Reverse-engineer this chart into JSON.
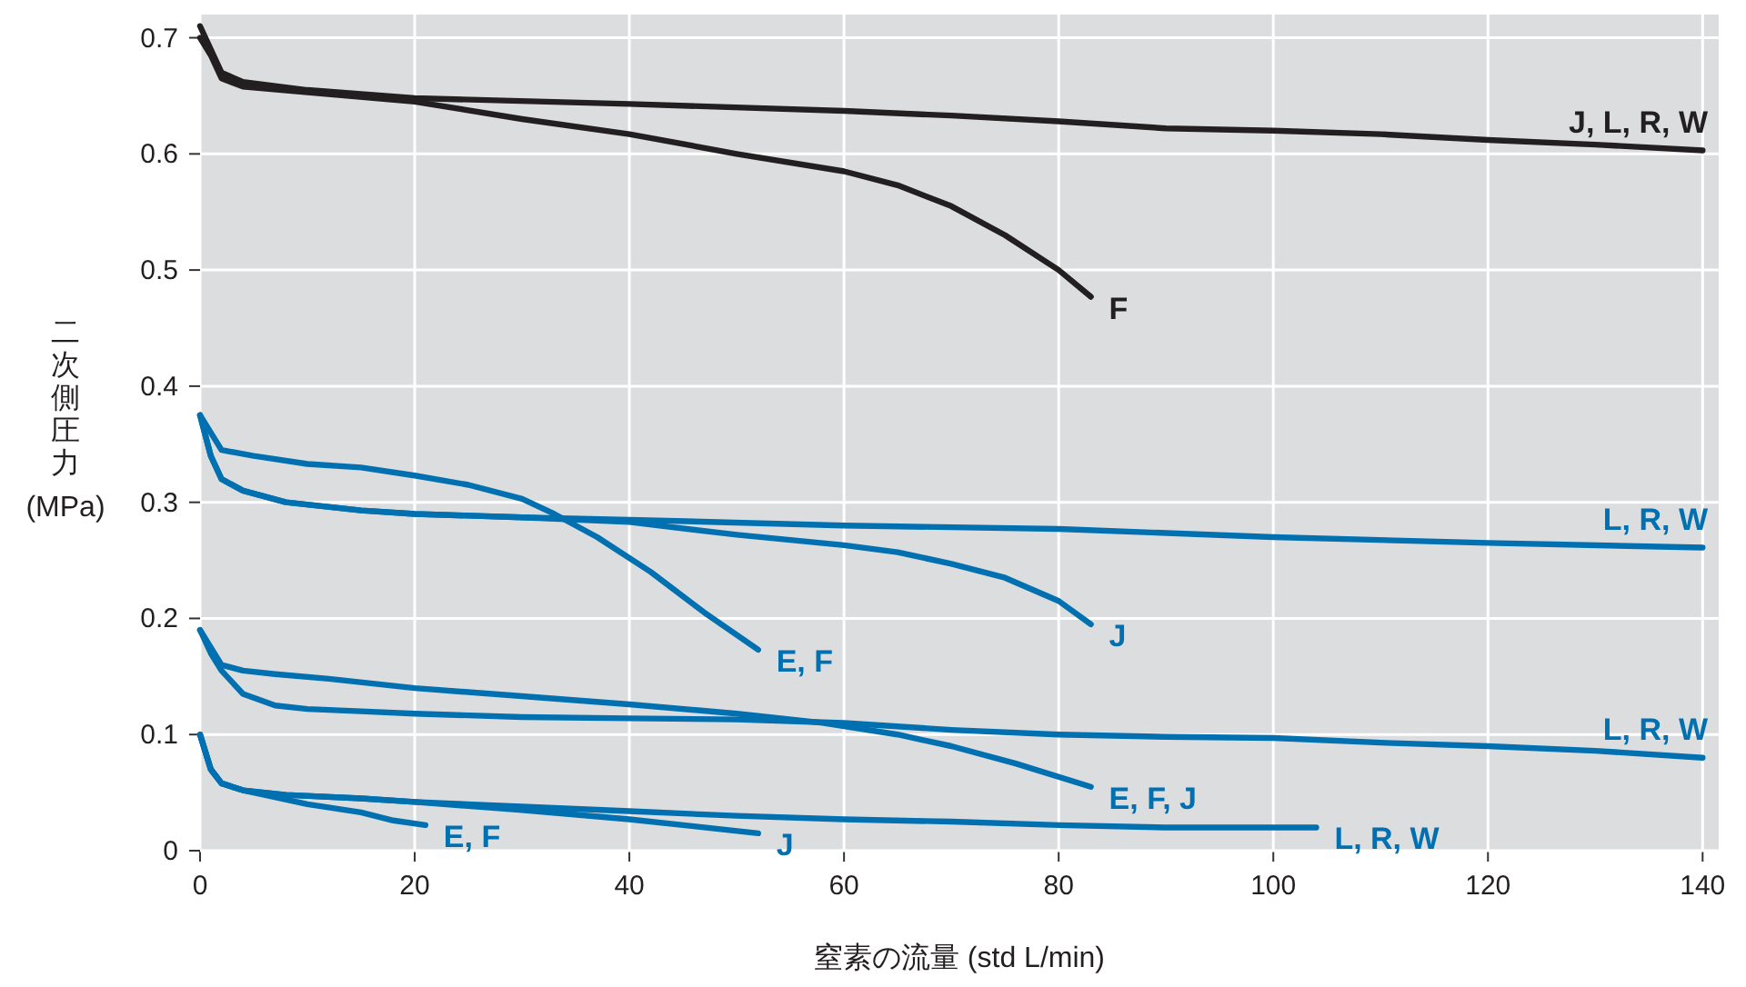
{
  "chart_data": {
    "type": "line",
    "xlabel": "窒素の流量 (std L/min)",
    "ylabel": "二次側圧力 (MPa)",
    "xlim": [
      0,
      141.5
    ],
    "ylim": [
      0,
      0.72
    ],
    "xticks": [
      0,
      20,
      40,
      60,
      80,
      100,
      120,
      140
    ],
    "yticks": [
      0,
      0.1,
      0.2,
      0.3,
      0.4,
      0.5,
      0.6,
      0.7
    ],
    "grid": true,
    "series": [
      {
        "name": "J, L, R, W",
        "color": "#231f20",
        "x": [
          0,
          1,
          2,
          4,
          10,
          20,
          40,
          60,
          70,
          80,
          90,
          100,
          110,
          120,
          130,
          140
        ],
        "values": [
          0.71,
          0.69,
          0.67,
          0.662,
          0.655,
          0.648,
          0.643,
          0.637,
          0.633,
          0.628,
          0.622,
          0.62,
          0.617,
          0.612,
          0.608,
          0.603
        ]
      },
      {
        "name": "F",
        "color": "#231f20",
        "x": [
          0,
          1,
          2,
          4,
          10,
          20,
          30,
          40,
          50,
          60,
          65,
          70,
          75,
          80,
          83
        ],
        "values": [
          0.7,
          0.685,
          0.665,
          0.658,
          0.653,
          0.645,
          0.63,
          0.617,
          0.6,
          0.585,
          0.573,
          0.555,
          0.53,
          0.5,
          0.477
        ]
      },
      {
        "name": "L, R, W",
        "color": "#0070b0",
        "x": [
          0,
          1,
          2,
          4,
          8,
          15,
          20,
          30,
          40,
          60,
          80,
          100,
          120,
          140
        ],
        "values": [
          0.375,
          0.34,
          0.32,
          0.31,
          0.3,
          0.293,
          0.29,
          0.287,
          0.285,
          0.28,
          0.277,
          0.27,
          0.265,
          0.261
        ]
      },
      {
        "name": "E, F",
        "color": "#0070b0",
        "x": [
          0,
          2,
          5,
          10,
          15,
          20,
          25,
          30,
          33,
          37,
          42,
          47,
          52
        ],
        "values": [
          0.375,
          0.345,
          0.34,
          0.333,
          0.33,
          0.323,
          0.315,
          0.303,
          0.29,
          0.27,
          0.24,
          0.205,
          0.173
        ]
      },
      {
        "name": "J",
        "color": "#0070b0",
        "x": [
          0,
          1,
          2,
          4,
          8,
          15,
          20,
          30,
          40,
          50,
          60,
          65,
          70,
          75,
          80,
          83
        ],
        "values": [
          0.375,
          0.34,
          0.32,
          0.31,
          0.3,
          0.293,
          0.29,
          0.287,
          0.283,
          0.272,
          0.263,
          0.257,
          0.247,
          0.235,
          0.215,
          0.195
        ]
      },
      {
        "name": "L, R, W",
        "color": "#0070b0",
        "x": [
          0,
          1,
          2,
          4,
          7,
          10,
          15,
          20,
          30,
          40,
          50,
          60,
          70,
          80,
          90,
          100,
          110,
          120,
          130,
          140
        ],
        "values": [
          0.19,
          0.17,
          0.155,
          0.135,
          0.125,
          0.122,
          0.12,
          0.118,
          0.115,
          0.114,
          0.113,
          0.11,
          0.104,
          0.1,
          0.098,
          0.097,
          0.093,
          0.09,
          0.086,
          0.08
        ]
      },
      {
        "name": "E, F, J",
        "color": "#0070b0",
        "x": [
          0,
          1,
          2,
          4,
          7,
          12,
          20,
          30,
          40,
          50,
          58,
          65,
          70,
          76,
          83
        ],
        "values": [
          0.19,
          0.175,
          0.16,
          0.155,
          0.152,
          0.148,
          0.14,
          0.133,
          0.126,
          0.118,
          0.11,
          0.1,
          0.09,
          0.075,
          0.055
        ]
      },
      {
        "name": "L, R, W",
        "color": "#0070b0",
        "x": [
          0,
          1,
          2,
          4,
          8,
          15,
          20,
          30,
          40,
          50,
          60,
          70,
          80,
          90,
          104
        ],
        "values": [
          0.1,
          0.07,
          0.058,
          0.052,
          0.048,
          0.045,
          0.042,
          0.038,
          0.034,
          0.03,
          0.027,
          0.025,
          0.022,
          0.02,
          0.02
        ]
      },
      {
        "name": "E, F",
        "color": "#0070b0",
        "x": [
          0,
          1,
          2,
          4,
          6,
          10,
          15,
          18,
          21
        ],
        "values": [
          0.1,
          0.07,
          0.058,
          0.052,
          0.048,
          0.04,
          0.033,
          0.026,
          0.022
        ]
      },
      {
        "name": "J",
        "color": "#0070b0",
        "x": [
          0,
          1,
          2,
          4,
          8,
          15,
          20,
          30,
          40,
          46,
          52
        ],
        "values": [
          0.1,
          0.07,
          0.058,
          0.052,
          0.048,
          0.045,
          0.042,
          0.035,
          0.027,
          0.021,
          0.015
        ]
      }
    ]
  }
}
